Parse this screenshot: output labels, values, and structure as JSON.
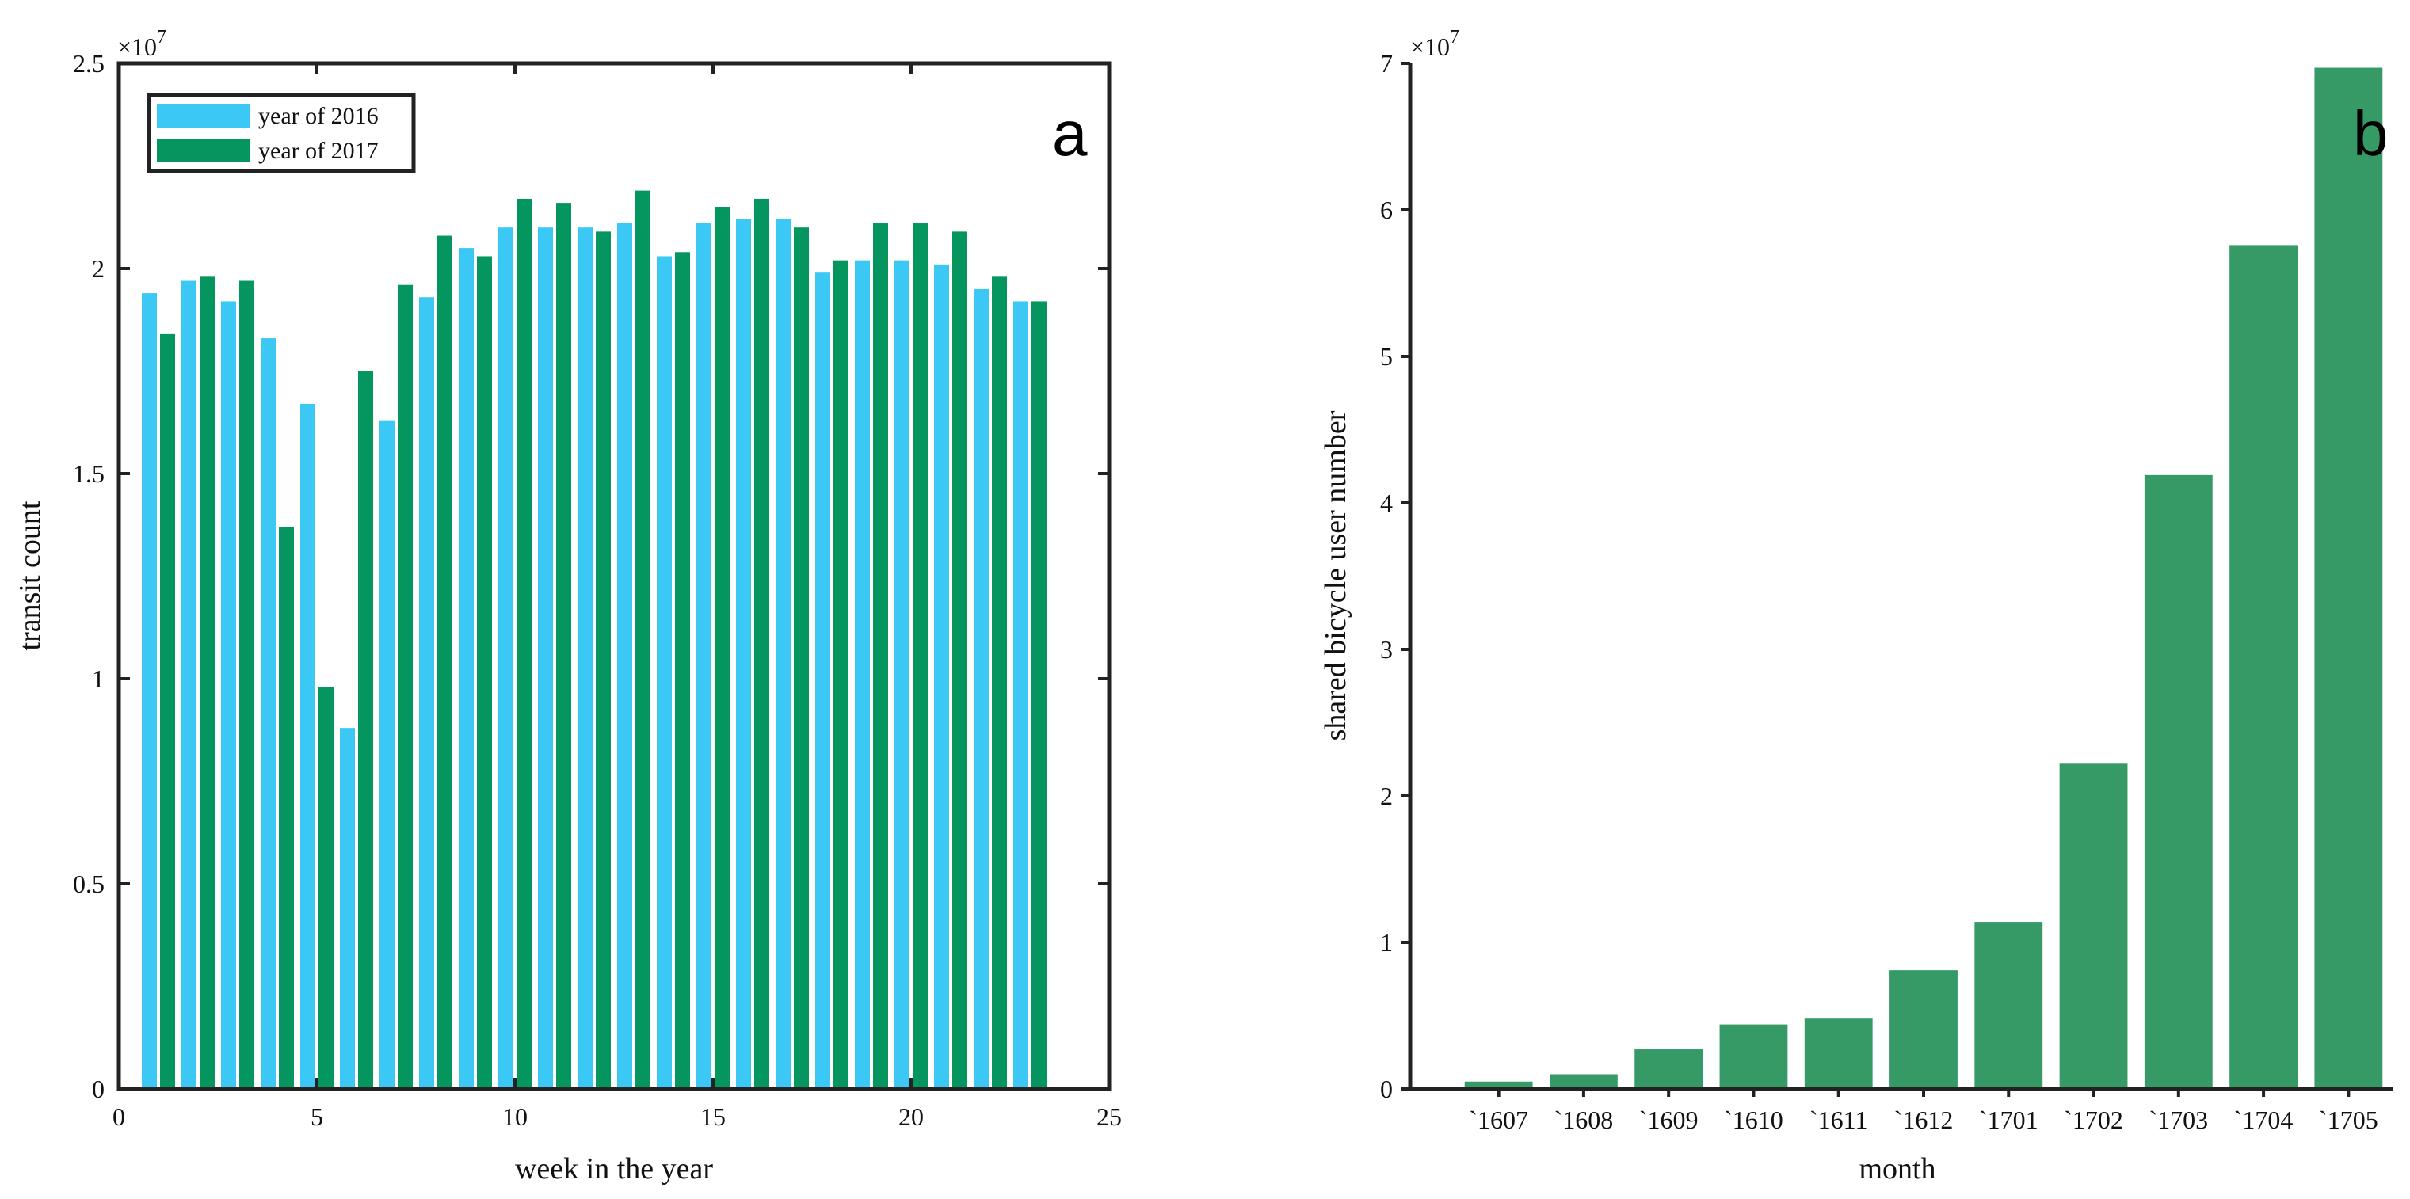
{
  "colors": {
    "year2016": "#3cc8f4",
    "year2017": "#05965f",
    "monthly": "#359a66",
    "axis": "#222222"
  },
  "chart_data": [
    {
      "panel": "a",
      "type": "bar",
      "xlabel": "week in the year",
      "ylabel": "transit count",
      "exponent_label": "×10",
      "exponent_power": "7",
      "xlim": [
        0,
        25
      ],
      "ylim": [
        0,
        2.5
      ],
      "xticks": [
        "0",
        "5",
        "10",
        "15",
        "20",
        "25"
      ],
      "yticks": [
        "0",
        "0.5",
        "1",
        "1.5",
        "2",
        "2.5"
      ],
      "legend_position": "top-left",
      "x": [
        1,
        2,
        3,
        4,
        5,
        6,
        7,
        8,
        9,
        10,
        11,
        12,
        13,
        14,
        15,
        16,
        17,
        18,
        19,
        20,
        21,
        22,
        23
      ],
      "series": [
        {
          "name": "year of 2016",
          "values": [
            1.94,
            1.97,
            1.92,
            1.83,
            1.67,
            0.88,
            1.63,
            1.93,
            2.05,
            2.1,
            2.1,
            2.1,
            2.11,
            2.03,
            2.11,
            2.12,
            2.12,
            1.99,
            2.02,
            2.02,
            2.01,
            1.95,
            1.92
          ]
        },
        {
          "name": "year of 2017",
          "values": [
            1.84,
            1.98,
            1.97,
            1.37,
            0.98,
            1.75,
            1.96,
            2.08,
            2.03,
            2.17,
            2.16,
            2.09,
            2.19,
            2.04,
            2.15,
            2.17,
            2.1,
            2.02,
            2.11,
            2.11,
            2.09,
            1.98,
            1.92
          ]
        }
      ]
    },
    {
      "panel": "b",
      "type": "bar",
      "xlabel": "month",
      "ylabel": "shared bicycle user number",
      "exponent_label": "×10",
      "exponent_power": "7",
      "ylim": [
        0,
        7
      ],
      "yticks": [
        "0",
        "1",
        "2",
        "3",
        "4",
        "5",
        "6",
        "7"
      ],
      "categories": [
        "`1607",
        "`1608",
        "`1609",
        "`1610",
        "`1611",
        "`1612",
        "`1701",
        "`1702",
        "`1703",
        "`1704",
        "`1705"
      ],
      "values": [
        0.05,
        0.1,
        0.27,
        0.44,
        0.48,
        0.81,
        1.14,
        2.22,
        4.19,
        5.76,
        6.97
      ]
    }
  ]
}
